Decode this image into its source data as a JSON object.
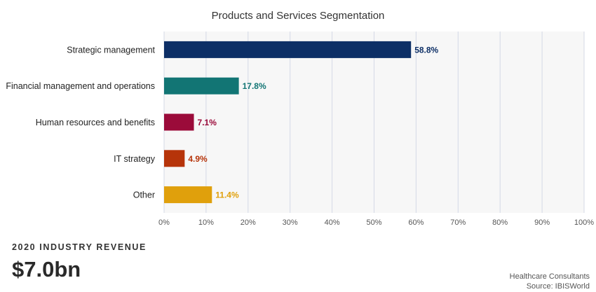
{
  "chart_data": {
    "type": "bar",
    "orientation": "horizontal",
    "title": "Products and Services Segmentation",
    "categories": [
      "Strategic management",
      "Financial management and operations",
      "Human resources and benefits",
      "IT strategy",
      "Other"
    ],
    "values": [
      58.8,
      17.8,
      7.1,
      4.9,
      11.4
    ],
    "value_labels": [
      "58.8%",
      "17.8%",
      "7.1%",
      "4.9%",
      "11.4%"
    ],
    "colors": [
      "#0d2f66",
      "#127574",
      "#9b0b3a",
      "#b6340a",
      "#e0a00c"
    ],
    "xlim": [
      0,
      100
    ],
    "x_ticks": [
      "0%",
      "10%",
      "20%",
      "30%",
      "40%",
      "50%",
      "60%",
      "70%",
      "80%",
      "90%",
      "100%"
    ],
    "xlabel": "",
    "ylabel": "",
    "grid": true,
    "plot_background": "#f7f7f7"
  },
  "footer": {
    "kpi_label": "2020 INDUSTRY REVENUE",
    "kpi_value": "$7.0bn",
    "industry": "Healthcare Consultants",
    "source": "Source: IBISWorld"
  }
}
